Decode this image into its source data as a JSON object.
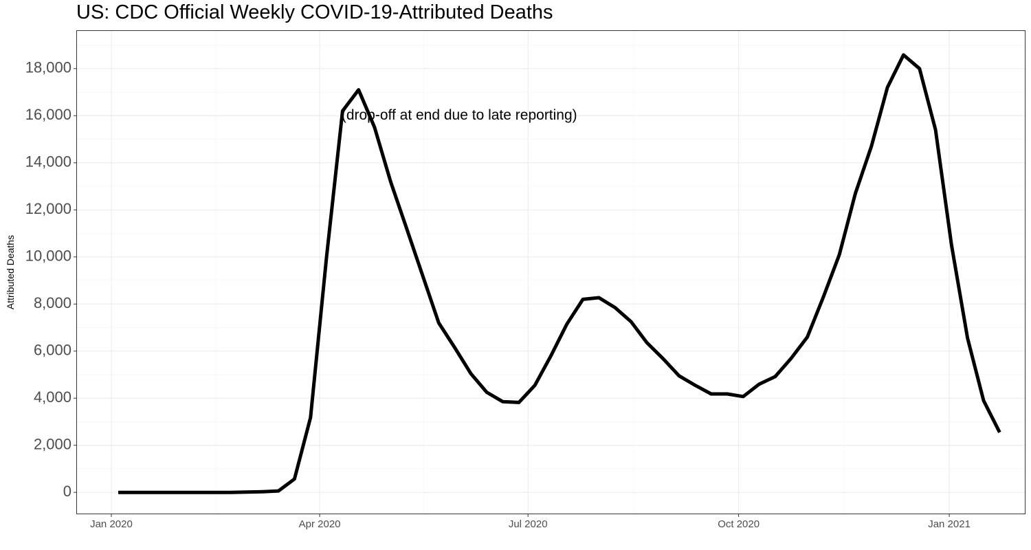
{
  "chart_data": {
    "type": "line",
    "title": "US: CDC Official Weekly COVID-19-Attributed Deaths",
    "xlabel": "",
    "ylabel": "Attributed Deaths",
    "x_tick_labels": [
      {
        "date": "2020-01-01",
        "label": "Jan 2020"
      },
      {
        "date": "2020-04-01",
        "label": "Apr 2020"
      },
      {
        "date": "2020-07-01",
        "label": "Jul 2020"
      },
      {
        "date": "2020-10-01",
        "label": "Oct 2020"
      },
      {
        "date": "2021-01-01",
        "label": "Jan 2021"
      }
    ],
    "y_ticks": [
      0,
      2000,
      4000,
      6000,
      8000,
      10000,
      12000,
      14000,
      16000,
      18000
    ],
    "y_tick_labels": [
      "0",
      "2,000",
      "4,000",
      "6,000",
      "8,000",
      "10,000",
      "12,000",
      "14,000",
      "16,000",
      "18,000"
    ],
    "xlim": [
      "2019-12-17",
      "2021-02-03"
    ],
    "ylim": [
      -900,
      19600
    ],
    "grid": true,
    "annotations": [
      {
        "text": "(drop-off at end due to late reporting)",
        "x": "2020-06-01",
        "y": 16000
      }
    ],
    "series": [
      {
        "color": "#000000",
        "x": [
          "2020-01-04",
          "2020-01-11",
          "2020-01-18",
          "2020-01-25",
          "2020-02-01",
          "2020-02-08",
          "2020-02-15",
          "2020-02-22",
          "2020-02-29",
          "2020-03-07",
          "2020-03-14",
          "2020-03-21",
          "2020-03-28",
          "2020-04-04",
          "2020-04-11",
          "2020-04-18",
          "2020-04-25",
          "2020-05-02",
          "2020-05-09",
          "2020-05-16",
          "2020-05-23",
          "2020-05-30",
          "2020-06-06",
          "2020-06-13",
          "2020-06-20",
          "2020-06-27",
          "2020-07-04",
          "2020-07-11",
          "2020-07-18",
          "2020-07-25",
          "2020-08-01",
          "2020-08-08",
          "2020-08-15",
          "2020-08-22",
          "2020-08-29",
          "2020-09-05",
          "2020-09-12",
          "2020-09-19",
          "2020-09-26",
          "2020-10-03",
          "2020-10-10",
          "2020-10-17",
          "2020-10-24",
          "2020-10-31",
          "2020-11-07",
          "2020-11-14",
          "2020-11-21",
          "2020-11-28",
          "2020-12-05",
          "2020-12-12",
          "2020-12-19",
          "2020-12-26",
          "2021-01-02",
          "2021-01-09",
          "2021-01-16",
          "2021-01-23"
        ],
        "values": [
          0,
          0,
          0,
          0,
          0,
          0,
          0,
          0,
          10,
          30,
          60,
          570,
          3180,
          10000,
          16200,
          17100,
          15500,
          13200,
          11200,
          9200,
          7200,
          6150,
          5050,
          4250,
          3850,
          3820,
          4550,
          5800,
          7150,
          8200,
          8270,
          7850,
          7250,
          6350,
          5680,
          4950,
          4550,
          4180,
          4180,
          4070,
          4600,
          4920,
          5700,
          6600,
          8300,
          10100,
          12700,
          14700,
          17200,
          18580,
          18000,
          15400,
          10500,
          6550,
          3900,
          2550
        ]
      }
    ]
  }
}
